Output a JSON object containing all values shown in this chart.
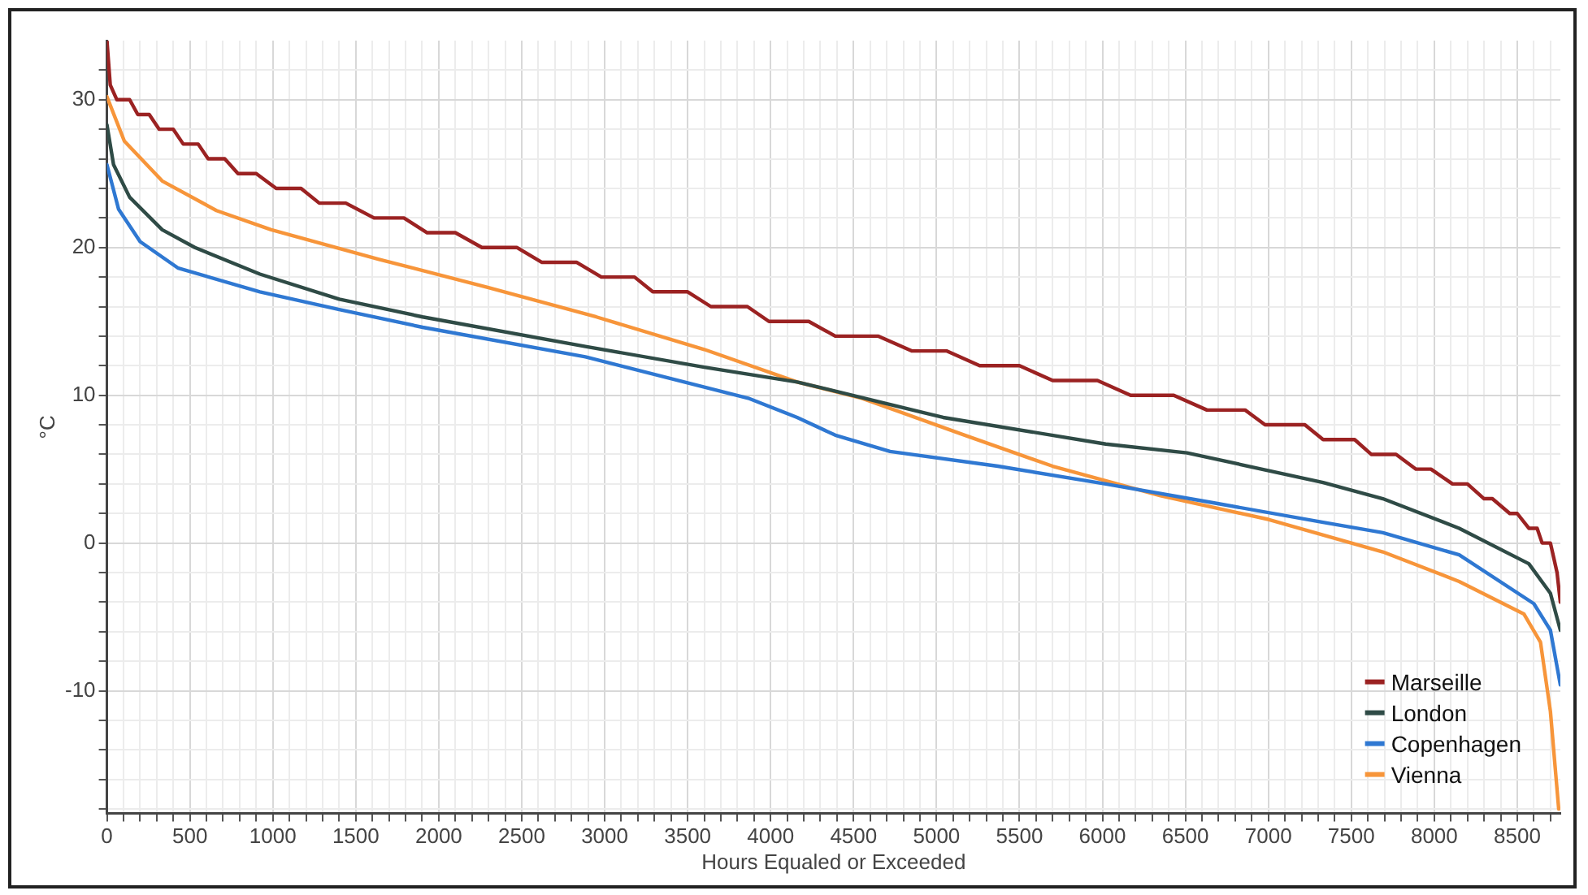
{
  "chart_data": {
    "type": "line",
    "xlabel": "Hours Equaled or Exceeded",
    "ylabel": "°C",
    "xlim": [
      0,
      8760
    ],
    "ylim": [
      -18.3,
      34
    ],
    "xticks": [
      0,
      {
        "value": 100,
        "label": null
      },
      {
        "value": 200,
        "label": null
      },
      {
        "value": 300,
        "label": null
      },
      {
        "value": 400,
        "label": null
      },
      500,
      {
        "value": 600,
        "label": null
      },
      {
        "value": 700,
        "label": null
      },
      {
        "value": 800,
        "label": null
      },
      {
        "value": 900,
        "label": null
      },
      1000,
      {
        "value": 1100,
        "label": null
      },
      {
        "value": 1200,
        "label": null
      },
      {
        "value": 1300,
        "label": null
      },
      {
        "value": 1400,
        "label": null
      },
      1500,
      {
        "value": 1600,
        "label": null
      },
      {
        "value": 1700,
        "label": null
      },
      {
        "value": 1800,
        "label": null
      },
      {
        "value": 1900,
        "label": null
      },
      2000,
      {
        "value": 2100,
        "label": null
      },
      {
        "value": 2200,
        "label": null
      },
      {
        "value": 2300,
        "label": null
      },
      {
        "value": 2400,
        "label": null
      },
      2500,
      {
        "value": 2600,
        "label": null
      },
      {
        "value": 2700,
        "label": null
      },
      {
        "value": 2800,
        "label": null
      },
      {
        "value": 2900,
        "label": null
      },
      3000,
      {
        "value": 3100,
        "label": null
      },
      {
        "value": 3200,
        "label": null
      },
      {
        "value": 3300,
        "label": null
      },
      {
        "value": 3400,
        "label": null
      },
      3500,
      {
        "value": 3600,
        "label": null
      },
      {
        "value": 3700,
        "label": null
      },
      {
        "value": 3800,
        "label": null
      },
      {
        "value": 3900,
        "label": null
      },
      4000,
      {
        "value": 4100,
        "label": null
      },
      {
        "value": 4200,
        "label": null
      },
      {
        "value": 4300,
        "label": null
      },
      {
        "value": 4400,
        "label": null
      },
      4500,
      {
        "value": 4600,
        "label": null
      },
      {
        "value": 4700,
        "label": null
      },
      {
        "value": 4800,
        "label": null
      },
      {
        "value": 4900,
        "label": null
      },
      5000,
      {
        "value": 5100,
        "label": null
      },
      {
        "value": 5200,
        "label": null
      },
      {
        "value": 5300,
        "label": null
      },
      {
        "value": 5400,
        "label": null
      },
      5500,
      {
        "value": 5600,
        "label": null
      },
      {
        "value": 5700,
        "label": null
      },
      {
        "value": 5800,
        "label": null
      },
      {
        "value": 5900,
        "label": null
      },
      6000,
      {
        "value": 6100,
        "label": null
      },
      {
        "value": 6200,
        "label": null
      },
      {
        "value": 6300,
        "label": null
      },
      {
        "value": 6400,
        "label": null
      },
      6500,
      {
        "value": 6600,
        "label": null
      },
      {
        "value": 6700,
        "label": null
      },
      {
        "value": 6800,
        "label": null
      },
      {
        "value": 6900,
        "label": null
      },
      7000,
      {
        "value": 7100,
        "label": null
      },
      {
        "value": 7200,
        "label": null
      },
      {
        "value": 7300,
        "label": null
      },
      {
        "value": 7400,
        "label": null
      },
      7500,
      {
        "value": 7600,
        "label": null
      },
      {
        "value": 7700,
        "label": null
      },
      {
        "value": 7800,
        "label": null
      },
      {
        "value": 7900,
        "label": null
      },
      8000,
      {
        "value": 8100,
        "label": null
      },
      {
        "value": 8200,
        "label": null
      },
      {
        "value": 8300,
        "label": null
      },
      {
        "value": 8400,
        "label": null
      },
      8500,
      {
        "value": 8600,
        "label": null
      },
      {
        "value": 8700,
        "label": null
      }
    ],
    "yticks": [
      {
        "value": -18,
        "label": null
      },
      {
        "value": -16,
        "label": null
      },
      {
        "value": -14,
        "label": null
      },
      {
        "value": -12,
        "label": null
      },
      -10,
      {
        "value": -8,
        "label": null
      },
      {
        "value": -6,
        "label": null
      },
      {
        "value": -4,
        "label": null
      },
      {
        "value": -2,
        "label": null
      },
      0,
      {
        "value": 2,
        "label": null
      },
      {
        "value": 4,
        "label": null
      },
      {
        "value": 6,
        "label": null
      },
      {
        "value": 8,
        "label": null
      },
      10,
      {
        "value": 12,
        "label": null
      },
      {
        "value": 14,
        "label": null
      },
      {
        "value": 16,
        "label": null
      },
      {
        "value": 18,
        "label": null
      },
      20,
      {
        "value": 22,
        "label": null
      },
      {
        "value": 24,
        "label": null
      },
      {
        "value": 26,
        "label": null
      },
      {
        "value": 28,
        "label": null
      },
      30,
      {
        "value": 32,
        "label": null
      }
    ],
    "grid": true,
    "legend": "bottom right",
    "marker": "none",
    "line_style": "solid",
    "series": [
      {
        "name": "Marseille",
        "color": "#9b2222",
        "x": [
          0,
          20,
          60,
          137,
          186,
          255,
          315,
          400,
          460,
          550,
          610,
          710,
          790,
          900,
          1020,
          1170,
          1280,
          1440,
          1610,
          1790,
          1930,
          2100,
          2260,
          2470,
          2620,
          2830,
          2980,
          3180,
          3290,
          3500,
          3640,
          3860,
          3990,
          4230,
          4390,
          4650,
          4850,
          5060,
          5260,
          5500,
          5700,
          5970,
          6170,
          6430,
          6630,
          6860,
          6980,
          7220,
          7330,
          7520,
          7620,
          7770,
          7890,
          7980,
          8110,
          8200,
          8300,
          8350,
          8455,
          8500,
          8570,
          8620,
          8650,
          8700,
          8720,
          8740,
          8760
        ],
        "values": [
          34,
          31,
          30,
          30,
          29,
          29,
          28,
          28,
          27,
          27,
          26,
          26,
          25,
          25,
          24,
          24,
          23,
          23,
          22,
          22,
          21,
          21,
          20,
          20,
          19,
          19,
          18,
          18,
          17,
          17,
          16,
          16,
          15,
          15,
          14,
          14,
          13,
          13,
          12,
          12,
          11,
          11,
          10,
          10,
          9,
          9,
          8,
          8,
          7,
          7,
          6,
          6,
          5,
          5,
          4,
          4,
          3,
          3,
          2,
          2,
          1,
          1,
          0,
          0,
          -1,
          -2,
          -4
        ]
      },
      {
        "name": "London",
        "color": "#2f4b46",
        "x": [
          0,
          40,
          137,
          333,
          530,
          922,
          1400,
          1903,
          2884,
          3600,
          4160,
          5040,
          6020,
          6510,
          7330,
          7690,
          8150,
          8570,
          8700,
          8760
        ],
        "values": [
          28.3,
          25.6,
          23.4,
          21.2,
          20.0,
          18.2,
          16.5,
          15.3,
          13.3,
          11.9,
          10.9,
          8.5,
          6.7,
          6.1,
          4.1,
          3.0,
          1.0,
          -1.4,
          -3.4,
          -5.9
        ]
      },
      {
        "name": "Copenhagen",
        "color": "#2f78d2",
        "x": [
          0,
          70,
          200,
          430,
          922,
          1400,
          1903,
          2884,
          3865,
          4160,
          4390,
          4720,
          5370,
          6020,
          6680,
          7330,
          7690,
          8150,
          8600,
          8700,
          8760
        ],
        "values": [
          25.6,
          22.6,
          20.4,
          18.6,
          17.0,
          15.8,
          14.6,
          12.6,
          9.8,
          8.5,
          7.3,
          6.2,
          5.2,
          4.0,
          2.7,
          1.4,
          0.7,
          -0.8,
          -4.1,
          -5.9,
          -9.6
        ]
      },
      {
        "name": "Vienna",
        "color": "#f7953a",
        "x": [
          0,
          105,
          333,
          660,
          990,
          1640,
          2295,
          2950,
          3600,
          4160,
          4550,
          5170,
          5700,
          6350,
          7000,
          7690,
          8150,
          8540,
          8640,
          8700,
          8750
        ],
        "values": [
          30.2,
          27.2,
          24.5,
          22.5,
          21.2,
          19.2,
          17.3,
          15.3,
          13.1,
          10.9,
          9.8,
          7.3,
          5.2,
          3.2,
          1.6,
          -0.6,
          -2.6,
          -4.8,
          -6.7,
          -11.4,
          -18.0
        ]
      }
    ]
  }
}
